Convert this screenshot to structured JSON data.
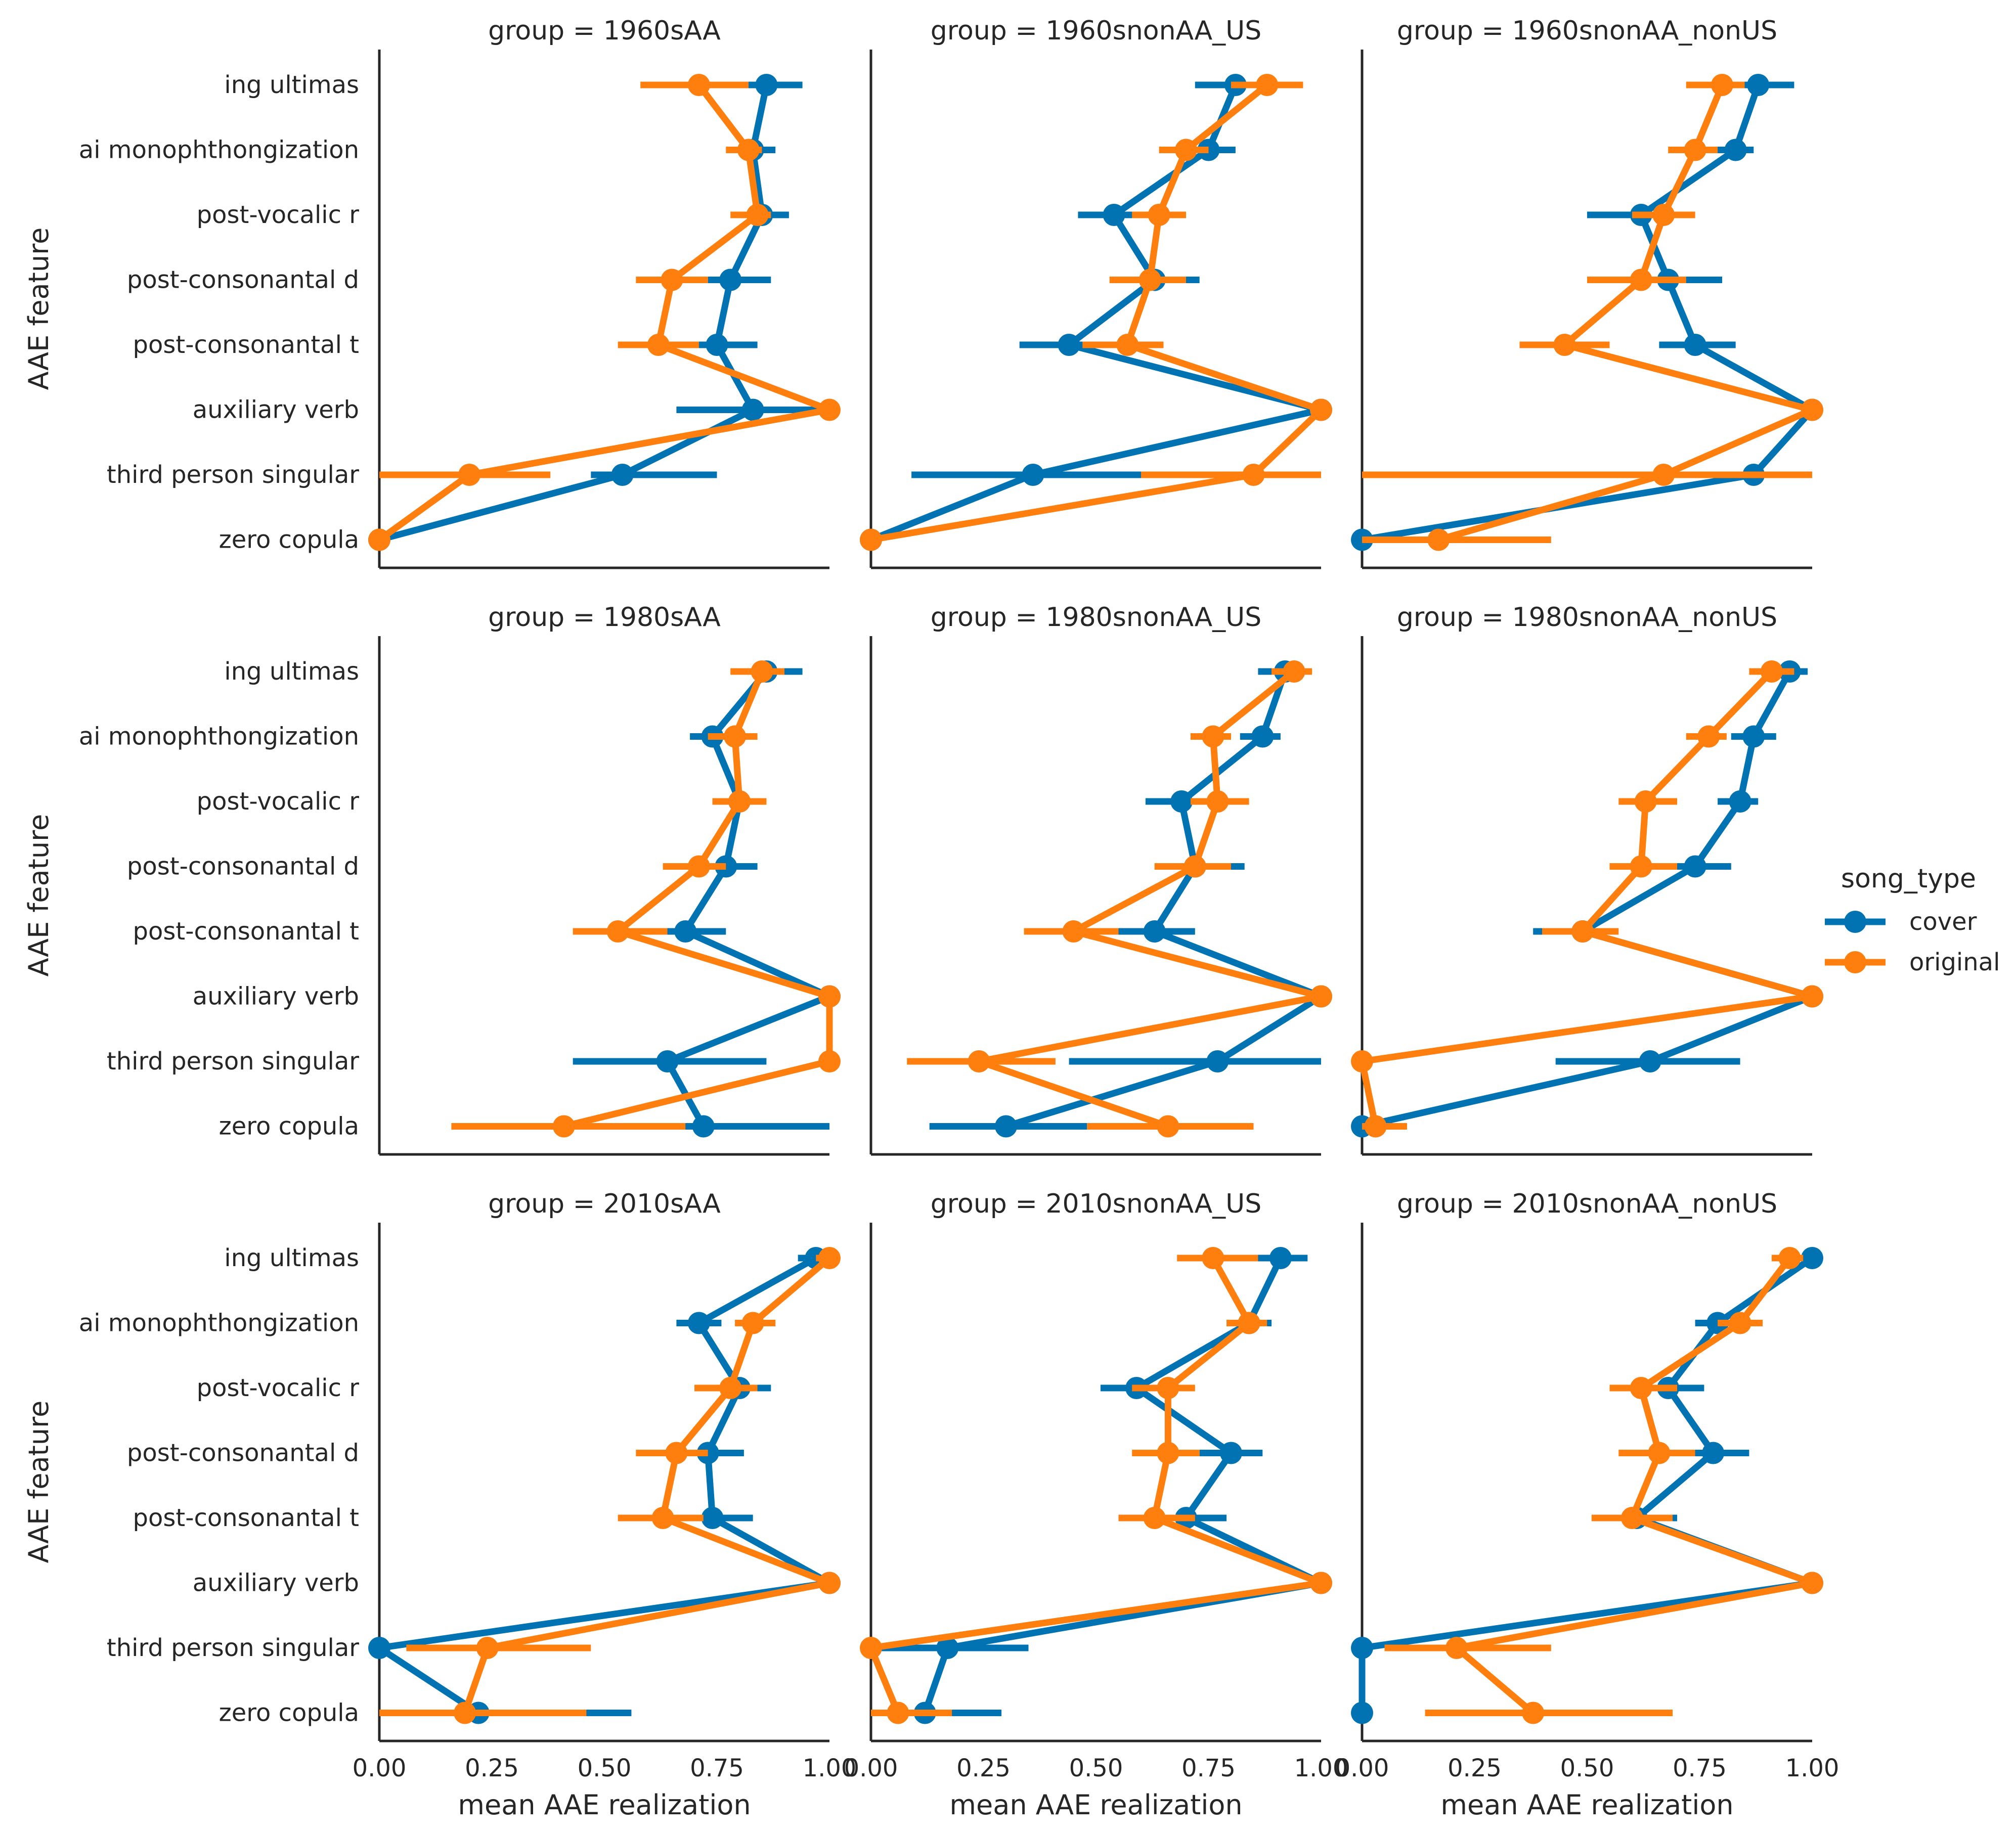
{
  "chart_data": {
    "type": "point",
    "title": "",
    "xlabel": "mean AAE realization",
    "ylabel": "AAE feature",
    "xlim": [
      0,
      1
    ],
    "xticks": [
      0,
      0.25,
      0.5,
      0.75,
      1
    ],
    "xtick_labels": [
      "0.00",
      "0.25",
      "0.50",
      "0.75",
      "1.00"
    ],
    "categories": [
      "ing ultimas",
      "ai monophthongization",
      "post-vocalic r",
      "post-consonantal d",
      "post-consonantal t",
      "auxiliary verb",
      "third person singular",
      "zero copula"
    ],
    "legend": {
      "title": "song_type",
      "position": "right",
      "entries": [
        {
          "name": "cover",
          "color": "#0173b2"
        },
        {
          "name": "original",
          "color": "#ff7f0e"
        }
      ]
    },
    "panels": [
      {
        "title": "group = 1960sAA",
        "series": [
          {
            "name": "cover",
            "values": [
              0.86,
              0.83,
              0.85,
              0.78,
              0.75,
              0.83,
              0.54,
              0.0
            ],
            "ci": [
              [
                0.82,
                0.94
              ],
              [
                0.79,
                0.88
              ],
              [
                0.8,
                0.91
              ],
              [
                0.73,
                0.87
              ],
              [
                0.69,
                0.84
              ],
              [
                0.66,
                0.98
              ],
              [
                0.47,
                0.75
              ],
              [
                0.0,
                0.0
              ]
            ]
          },
          {
            "name": "original",
            "values": [
              0.71,
              0.82,
              0.84,
              0.65,
              0.62,
              1.0,
              0.2,
              0.0
            ],
            "ci": [
              [
                0.58,
                0.82
              ],
              [
                0.77,
                0.85
              ],
              [
                0.78,
                0.87
              ],
              [
                0.57,
                0.73
              ],
              [
                0.53,
                0.71
              ],
              [
                1.0,
                1.0
              ],
              [
                0.0,
                0.38
              ],
              [
                0.0,
                0.0
              ]
            ]
          }
        ]
      },
      {
        "title": "group = 1960snonAA_US",
        "series": [
          {
            "name": "cover",
            "values": [
              0.81,
              0.75,
              0.54,
              0.63,
              0.44,
              1.0,
              0.36,
              0.0
            ],
            "ci": [
              [
                0.72,
                0.88
              ],
              [
                0.68,
                0.81
              ],
              [
                0.46,
                0.6
              ],
              [
                0.55,
                0.73
              ],
              [
                0.33,
                0.52
              ],
              [
                1.0,
                1.0
              ],
              [
                0.09,
                0.61
              ],
              [
                0.0,
                0.0
              ]
            ]
          },
          {
            "name": "original",
            "values": [
              0.88,
              0.7,
              0.64,
              0.62,
              0.57,
              1.0,
              0.85,
              0.0
            ],
            "ci": [
              [
                0.8,
                0.96
              ],
              [
                0.64,
                0.75
              ],
              [
                0.58,
                0.7
              ],
              [
                0.53,
                0.7
              ],
              [
                0.47,
                0.65
              ],
              [
                1.0,
                1.0
              ],
              [
                0.6,
                1.0
              ],
              [
                0.0,
                0.0
              ]
            ]
          }
        ]
      },
      {
        "title": "group = 1960snonAA_nonUS",
        "series": [
          {
            "name": "cover",
            "values": [
              0.88,
              0.83,
              0.62,
              0.68,
              0.74,
              1.0,
              0.87,
              0.0
            ],
            "ci": [
              [
                0.82,
                0.96
              ],
              [
                0.78,
                0.87
              ],
              [
                0.5,
                0.7
              ],
              [
                0.61,
                0.8
              ],
              [
                0.66,
                0.83
              ],
              [
                1.0,
                1.0
              ],
              [
                0.74,
                1.0
              ],
              [
                0.0,
                0.0
              ]
            ]
          },
          {
            "name": "original",
            "values": [
              0.8,
              0.74,
              0.67,
              0.62,
              0.45,
              1.0,
              0.67,
              0.17
            ],
            "ci": [
              [
                0.72,
                0.85
              ],
              [
                0.68,
                0.79
              ],
              [
                0.6,
                0.74
              ],
              [
                0.5,
                0.72
              ],
              [
                0.35,
                0.55
              ],
              [
                1.0,
                1.0
              ],
              [
                0.0,
                1.0
              ],
              [
                0.0,
                0.42
              ]
            ]
          }
        ]
      },
      {
        "title": "group = 1980sAA",
        "series": [
          {
            "name": "cover",
            "values": [
              0.86,
              0.74,
              0.8,
              0.77,
              0.68,
              1.0,
              0.64,
              0.72
            ],
            "ci": [
              [
                0.8,
                0.94
              ],
              [
                0.69,
                0.79
              ],
              [
                0.75,
                0.85
              ],
              [
                0.7,
                0.84
              ],
              [
                0.6,
                0.77
              ],
              [
                1.0,
                1.0
              ],
              [
                0.43,
                0.86
              ],
              [
                0.48,
                1.0
              ]
            ]
          },
          {
            "name": "original",
            "values": [
              0.85,
              0.79,
              0.8,
              0.71,
              0.53,
              1.0,
              1.0,
              0.41
            ],
            "ci": [
              [
                0.78,
                0.9
              ],
              [
                0.73,
                0.84
              ],
              [
                0.74,
                0.86
              ],
              [
                0.63,
                0.77
              ],
              [
                0.43,
                0.64
              ],
              [
                1.0,
                1.0
              ],
              [
                1.0,
                1.0
              ],
              [
                0.16,
                0.68
              ]
            ]
          }
        ]
      },
      {
        "title": "group = 1980snonAA_US",
        "series": [
          {
            "name": "cover",
            "values": [
              0.92,
              0.87,
              0.69,
              0.72,
              0.63,
              1.0,
              0.77,
              0.3
            ],
            "ci": [
              [
                0.86,
                0.97
              ],
              [
                0.82,
                0.91
              ],
              [
                0.61,
                0.76
              ],
              [
                0.65,
                0.83
              ],
              [
                0.53,
                0.72
              ],
              [
                1.0,
                1.0
              ],
              [
                0.44,
                1.0
              ],
              [
                0.13,
                0.48
              ]
            ]
          },
          {
            "name": "original",
            "values": [
              0.94,
              0.76,
              0.77,
              0.72,
              0.45,
              1.0,
              0.24,
              0.66
            ],
            "ci": [
              [
                0.89,
                0.98
              ],
              [
                0.71,
                0.8
              ],
              [
                0.71,
                0.84
              ],
              [
                0.63,
                0.8
              ],
              [
                0.34,
                0.55
              ],
              [
                1.0,
                1.0
              ],
              [
                0.08,
                0.41
              ],
              [
                0.48,
                0.85
              ]
            ]
          }
        ]
      },
      {
        "title": "group = 1980snonAA_nonUS",
        "series": [
          {
            "name": "cover",
            "values": [
              0.95,
              0.87,
              0.84,
              0.74,
              0.49,
              1.0,
              0.64,
              0.0
            ],
            "ci": [
              [
                0.9,
                0.99
              ],
              [
                0.82,
                0.92
              ],
              [
                0.79,
                0.88
              ],
              [
                0.67,
                0.82
              ],
              [
                0.38,
                0.56
              ],
              [
                1.0,
                1.0
              ],
              [
                0.43,
                0.84
              ],
              [
                0.0,
                0.0
              ]
            ]
          },
          {
            "name": "original",
            "values": [
              0.91,
              0.77,
              0.63,
              0.62,
              0.49,
              1.0,
              0.0,
              0.03
            ],
            "ci": [
              [
                0.86,
                0.96
              ],
              [
                0.72,
                0.81
              ],
              [
                0.57,
                0.7
              ],
              [
                0.55,
                0.7
              ],
              [
                0.4,
                0.57
              ],
              [
                1.0,
                1.0
              ],
              [
                0.0,
                0.0
              ],
              [
                0.0,
                0.1
              ]
            ]
          }
        ]
      },
      {
        "title": "group = 2010sAA",
        "series": [
          {
            "name": "cover",
            "values": [
              0.97,
              0.71,
              0.8,
              0.73,
              0.74,
              1.0,
              0.0,
              0.22
            ],
            "ci": [
              [
                0.93,
                1.0
              ],
              [
                0.66,
                0.76
              ],
              [
                0.74,
                0.87
              ],
              [
                0.66,
                0.81
              ],
              [
                0.67,
                0.83
              ],
              [
                1.0,
                1.0
              ],
              [
                0.0,
                0.0
              ],
              [
                0.14,
                0.56
              ]
            ]
          },
          {
            "name": "original",
            "values": [
              1.0,
              0.83,
              0.78,
              0.66,
              0.63,
              1.0,
              0.24,
              0.19
            ],
            "ci": [
              [
                0.97,
                1.0
              ],
              [
                0.79,
                0.88
              ],
              [
                0.7,
                0.84
              ],
              [
                0.57,
                0.73
              ],
              [
                0.53,
                0.72
              ],
              [
                1.0,
                1.0
              ],
              [
                0.06,
                0.47
              ],
              [
                0.0,
                0.46
              ]
            ]
          }
        ]
      },
      {
        "title": "group = 2010snonAA_US",
        "series": [
          {
            "name": "cover",
            "values": [
              0.91,
              0.84,
              0.59,
              0.8,
              0.7,
              1.0,
              0.17,
              0.12
            ],
            "ci": [
              [
                0.85,
                0.97
              ],
              [
                0.79,
                0.89
              ],
              [
                0.51,
                0.66
              ],
              [
                0.73,
                0.87
              ],
              [
                0.63,
                0.79
              ],
              [
                1.0,
                1.0
              ],
              [
                0.0,
                0.35
              ],
              [
                0.0,
                0.29
              ]
            ]
          },
          {
            "name": "original",
            "values": [
              0.76,
              0.84,
              0.66,
              0.66,
              0.63,
              1.0,
              0.0,
              0.06
            ],
            "ci": [
              [
                0.68,
                0.86
              ],
              [
                0.79,
                0.88
              ],
              [
                0.58,
                0.72
              ],
              [
                0.58,
                0.73
              ],
              [
                0.55,
                0.72
              ],
              [
                1.0,
                1.0
              ],
              [
                0.0,
                0.0
              ],
              [
                0.0,
                0.18
              ]
            ]
          }
        ]
      },
      {
        "title": "group = 2010snonAA_nonUS",
        "series": [
          {
            "name": "cover",
            "values": [
              1.0,
              0.79,
              0.68,
              0.78,
              0.61,
              1.0,
              0.0,
              0.0
            ],
            "ci": [
              [
                1.0,
                1.0
              ],
              [
                0.74,
                0.83
              ],
              [
                0.61,
                0.76
              ],
              [
                0.71,
                0.86
              ],
              [
                0.56,
                0.7
              ],
              [
                1.0,
                1.0
              ],
              [
                0.0,
                0.0
              ],
              [
                0.0,
                0.0
              ]
            ]
          },
          {
            "name": "original",
            "values": [
              0.95,
              0.84,
              0.62,
              0.66,
              0.6,
              1.0,
              0.21,
              0.38
            ],
            "ci": [
              [
                0.91,
                0.98
              ],
              [
                0.79,
                0.89
              ],
              [
                0.55,
                0.7
              ],
              [
                0.57,
                0.74
              ],
              [
                0.51,
                0.69
              ],
              [
                1.0,
                1.0
              ],
              [
                0.05,
                0.42
              ],
              [
                0.14,
                0.69
              ]
            ]
          }
        ]
      }
    ]
  }
}
